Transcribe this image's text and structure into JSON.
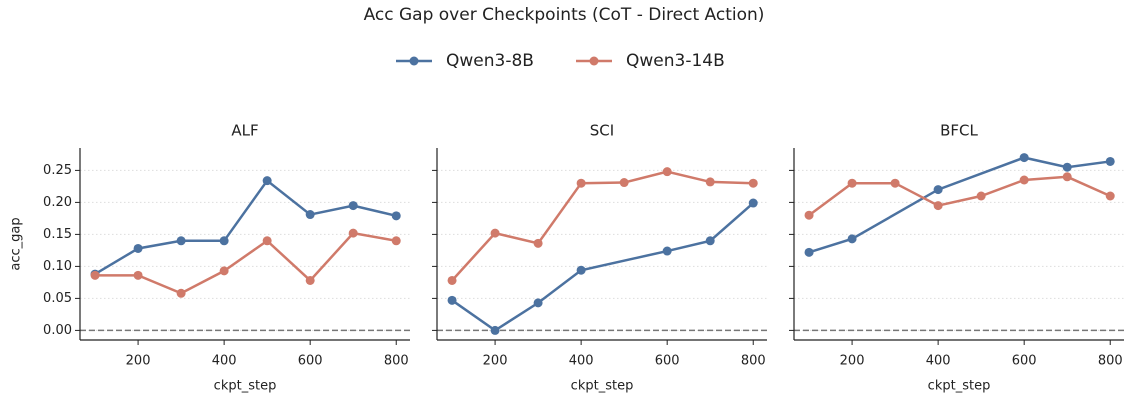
{
  "title": "Acc Gap over Checkpoints (CoT - Direct Action)",
  "legend": [
    {
      "name": "Qwen3-8B",
      "color": "#4c72a0"
    },
    {
      "name": "Qwen3-14B",
      "color": "#d07a6a"
    }
  ],
  "chart_data": [
    {
      "type": "line",
      "title": "ALF",
      "xlabel": "ckpt_step",
      "ylabel": "acc_gap",
      "xlim": [
        65,
        832
      ],
      "xticks": [
        200,
        400,
        600,
        800
      ],
      "ylim": [
        -0.015,
        0.285
      ],
      "yticks": [
        {
          "value": 0,
          "label": "0.00"
        },
        {
          "value": 0.05,
          "label": "0.05"
        },
        {
          "value": 0.1,
          "label": "0.10"
        },
        {
          "value": 0.15,
          "label": "0.15"
        },
        {
          "value": 0.2,
          "label": "0.20"
        },
        {
          "value": 0.25,
          "label": "0.25"
        }
      ],
      "grid": true,
      "hline": 0,
      "series": [
        {
          "x": [
            100,
            200,
            300,
            400,
            500,
            600,
            700,
            800
          ],
          "values": [
            0.088,
            0.128,
            0.14,
            0.14,
            0.234,
            0.181,
            0.195,
            0.179
          ]
        },
        {
          "x": [
            100,
            200,
            300,
            400,
            500,
            600,
            700,
            800
          ],
          "values": [
            0.086,
            0.086,
            0.058,
            0.093,
            0.14,
            0.078,
            0.152,
            0.14
          ]
        }
      ]
    },
    {
      "type": "line",
      "title": "SCI",
      "xlabel": "ckpt_step",
      "xlim": [
        65,
        832
      ],
      "xticks": [
        200,
        400,
        600,
        800
      ],
      "ylim": [
        -0.015,
        0.285
      ],
      "yticks": [
        0,
        0.05,
        0.1,
        0.15,
        0.2,
        0.25
      ],
      "grid": true,
      "hline": 0,
      "series": [
        {
          "x": [
            100,
            200,
            300,
            400,
            600,
            700,
            800
          ],
          "values": [
            0.047,
            0.0,
            0.043,
            0.094,
            0.124,
            0.14,
            0.199
          ]
        },
        {
          "x": [
            100,
            200,
            300,
            400,
            500,
            600,
            700,
            800
          ],
          "values": [
            0.078,
            0.152,
            0.136,
            0.23,
            0.231,
            0.248,
            0.232,
            0.23
          ]
        }
      ]
    },
    {
      "type": "line",
      "title": "BFCL",
      "xlabel": "ckpt_step",
      "xlim": [
        65,
        832
      ],
      "xticks": [
        200,
        400,
        600,
        800
      ],
      "ylim": [
        -0.015,
        0.285
      ],
      "yticks": [
        0,
        0.05,
        0.1,
        0.15,
        0.2,
        0.25
      ],
      "grid": true,
      "hline": 0,
      "series": [
        {
          "x": [
            100,
            200,
            400,
            600,
            700,
            800
          ],
          "values": [
            0.122,
            0.143,
            0.22,
            0.27,
            0.255,
            0.264
          ]
        },
        {
          "x": [
            100,
            200,
            300,
            400,
            500,
            600,
            700,
            800
          ],
          "values": [
            0.18,
            0.23,
            0.23,
            0.195,
            0.21,
            0.235,
            0.24,
            0.21
          ]
        }
      ]
    }
  ]
}
